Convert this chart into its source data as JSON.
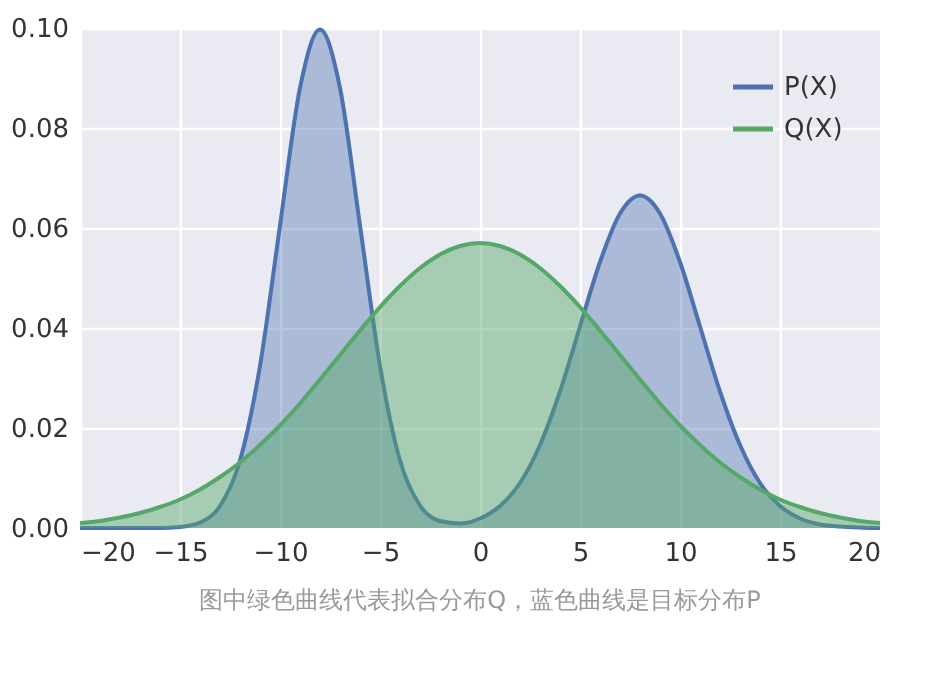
{
  "chart_data": {
    "type": "area",
    "x": [
      -20,
      -19,
      -18,
      -17,
      -16,
      -15,
      -14,
      -13,
      -12,
      -11,
      -10,
      -9,
      -8,
      -7,
      -6,
      -5,
      -4,
      -3,
      -2,
      -1,
      0,
      1,
      2,
      3,
      4,
      5,
      6,
      7,
      8,
      9,
      10,
      11,
      12,
      13,
      14,
      15,
      16,
      17,
      18,
      19,
      20
    ],
    "series": [
      {
        "name": "P(X)",
        "color": "#4c72b0",
        "values": [
          0,
          0,
          0,
          0,
          0,
          0.0002,
          0.0011,
          0.0044,
          0.0135,
          0.0324,
          0.0605,
          0.088,
          0.0997,
          0.088,
          0.0605,
          0.0324,
          0.0135,
          0.0045,
          0.0014,
          0.0009,
          0.0019,
          0.0044,
          0.009,
          0.0166,
          0.0273,
          0.0403,
          0.0532,
          0.0629,
          0.0665,
          0.0629,
          0.0532,
          0.0403,
          0.0273,
          0.0166,
          0.009,
          0.0044,
          0.0019,
          0.0007,
          0.0003,
          0.0001,
          0
        ]
      },
      {
        "name": "Q(X)",
        "color": "#55a868",
        "values": [
          0.001,
          0.0014,
          0.0021,
          0.003,
          0.0042,
          0.0057,
          0.0077,
          0.0102,
          0.0131,
          0.0166,
          0.0205,
          0.0249,
          0.0297,
          0.0346,
          0.0395,
          0.0442,
          0.0484,
          0.052,
          0.0547,
          0.0564,
          0.057,
          0.0564,
          0.0547,
          0.052,
          0.0484,
          0.0442,
          0.0395,
          0.0346,
          0.0297,
          0.0249,
          0.0205,
          0.0166,
          0.0131,
          0.0102,
          0.0077,
          0.0057,
          0.0042,
          0.003,
          0.0021,
          0.0014,
          0.001
        ]
      }
    ],
    "xlim": [
      -20,
      20
    ],
    "xticks": [
      -20,
      -15,
      -10,
      -5,
      0,
      5,
      10,
      15,
      20
    ],
    "ylim": [
      0,
      0.1
    ],
    "yticks": [
      {
        "value": 0,
        "label": "0.00"
      },
      {
        "value": 0.02,
        "label": "0.02"
      },
      {
        "value": 0.04,
        "label": "0.04"
      },
      {
        "value": 0.06,
        "label": "0.06"
      },
      {
        "value": 0.08,
        "label": "0.08"
      },
      {
        "value": 0.1,
        "label": "0.10"
      }
    ],
    "grid": true,
    "legend": "top right",
    "annotations": [
      "图中绿色曲线代表拟合分布Q，蓝色曲线是目标分布P"
    ]
  }
}
